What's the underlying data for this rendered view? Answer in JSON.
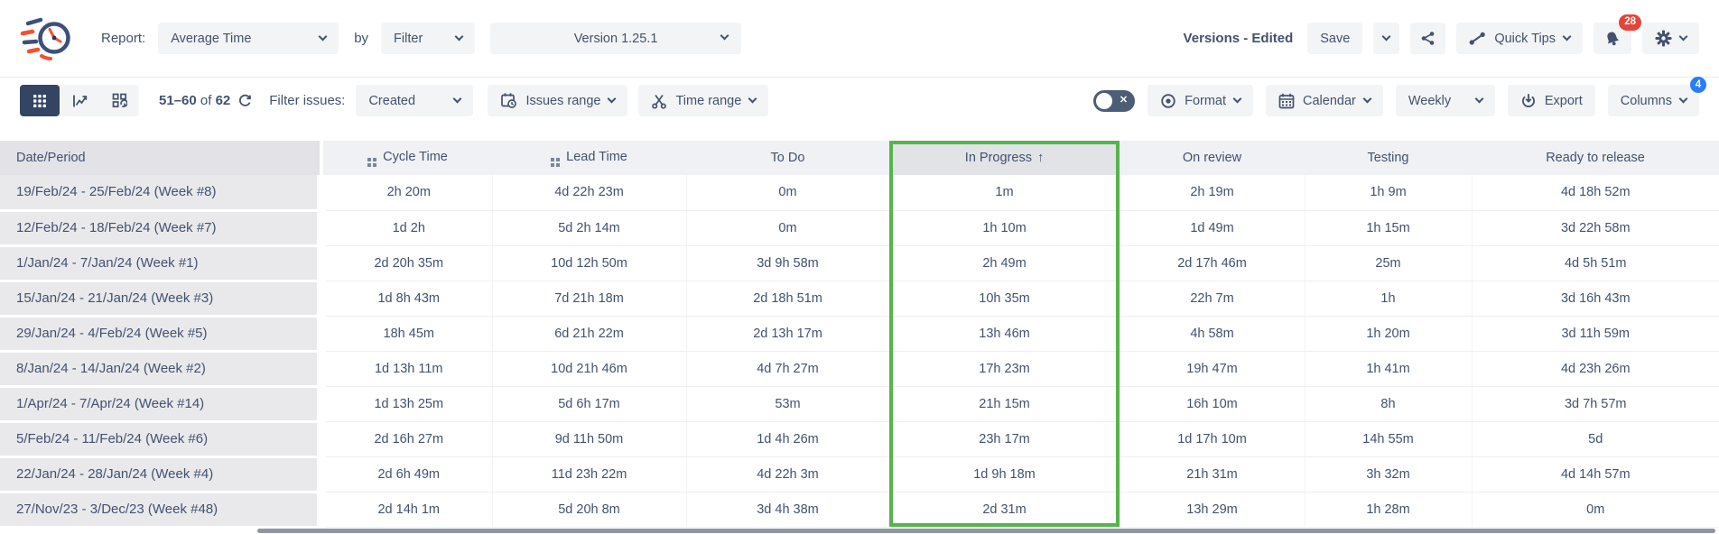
{
  "topbar": {
    "report_label": "Report:",
    "report_type_value": "Average Time",
    "by_label": "by",
    "group_by_value": "Filter",
    "version_value": "Version 1.25.1",
    "view_name": "Versions - Edited",
    "save_label": "Save",
    "quick_tips_label": "Quick Tips",
    "notifications_badge": "28"
  },
  "toolbar": {
    "pagination_range": "51–60",
    "pagination_of": "of",
    "pagination_total": "62",
    "filter_issues_label": "Filter issues:",
    "filter_field_value": "Created",
    "issues_range_label": "Issues range",
    "time_range_label": "Time range",
    "format_label": "Format",
    "calendar_label": "Calendar",
    "period_value": "Weekly",
    "export_label": "Export",
    "columns_label": "Columns",
    "columns_badge": "4"
  },
  "table": {
    "columns": [
      {
        "label": "Date/Period",
        "icon": "",
        "sorted": false
      },
      {
        "label": "Cycle Time",
        "icon": "grid-icon",
        "sorted": false
      },
      {
        "label": "Lead Time",
        "icon": "grid-icon",
        "sorted": false
      },
      {
        "label": "To Do",
        "icon": "",
        "sorted": false
      },
      {
        "label": "In Progress",
        "icon": "",
        "sorted": true,
        "sort_arrow": "↑"
      },
      {
        "label": "On review",
        "icon": "",
        "sorted": false
      },
      {
        "label": "Testing",
        "icon": "",
        "sorted": false
      },
      {
        "label": "Ready to release",
        "icon": "",
        "sorted": false
      }
    ],
    "rows": [
      [
        "19/Feb/24 - 25/Feb/24 (Week #8)",
        "2h 20m",
        "4d 22h 23m",
        "0m",
        "1m",
        "2h 19m",
        "1h 9m",
        "4d 18h 52m"
      ],
      [
        "12/Feb/24 - 18/Feb/24 (Week #7)",
        "1d 2h",
        "5d 2h 14m",
        "0m",
        "1h 10m",
        "1d 49m",
        "1h 15m",
        "3d 22h 58m"
      ],
      [
        "1/Jan/24 - 7/Jan/24 (Week #1)",
        "2d 20h 35m",
        "10d 12h 50m",
        "3d 9h 58m",
        "2h 49m",
        "2d 17h 46m",
        "25m",
        "4d 5h 51m"
      ],
      [
        "15/Jan/24 - 21/Jan/24 (Week #3)",
        "1d 8h 43m",
        "7d 21h 18m",
        "2d 18h 51m",
        "10h 35m",
        "22h 7m",
        "1h",
        "3d 16h 43m"
      ],
      [
        "29/Jan/24 - 4/Feb/24 (Week #5)",
        "18h 45m",
        "6d 21h 22m",
        "2d 13h 17m",
        "13h 46m",
        "4h 58m",
        "1h 20m",
        "3d 11h 59m"
      ],
      [
        "8/Jan/24 - 14/Jan/24 (Week #2)",
        "1d 13h 11m",
        "10d 21h 46m",
        "4d 7h 27m",
        "17h 23m",
        "19h 47m",
        "1h 41m",
        "4d 23h 26m"
      ],
      [
        "1/Apr/24 - 7/Apr/24 (Week #14)",
        "1d 13h 25m",
        "5d 6h 17m",
        "53m",
        "21h 15m",
        "16h 10m",
        "8h",
        "3d 7h 57m"
      ],
      [
        "5/Feb/24 - 11/Feb/24 (Week #6)",
        "2d 16h 27m",
        "9d 11h 50m",
        "1d 4h 26m",
        "23h 17m",
        "1d 17h 10m",
        "14h 55m",
        "5d"
      ],
      [
        "22/Jan/24 - 28/Jan/24 (Week #4)",
        "2d 6h 49m",
        "11d 23h 22m",
        "4d 22h 3m",
        "1d 9h 18m",
        "21h 31m",
        "3h 32m",
        "4d 14h 57m"
      ],
      [
        "27/Nov/23 - 3/Dec/23 (Week #48)",
        "2d 14h 1m",
        "5d 20h 8m",
        "3d 4h 38m",
        "2d 31m",
        "13h 29m",
        "1h 28m",
        "0m"
      ]
    ],
    "highlighted_column": "In Progress"
  },
  "colors": {
    "highlight_green": "#57b44c",
    "badge_red": "#e2453a",
    "badge_blue": "#2b7cf8",
    "text_navy": "#42526e",
    "accent_orange": "#f4502c"
  }
}
